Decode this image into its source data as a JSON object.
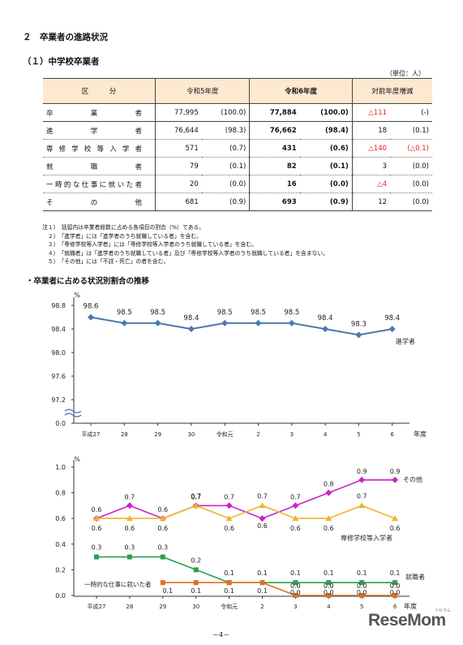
{
  "section_title": "２　卒業者の進路状況",
  "subsection_title": "（１）中学校卒業者",
  "unit_note": "（単位：人）",
  "table": {
    "headers": [
      "区　　　分",
      "令和5年度",
      "令和6年度",
      "対前年度増減"
    ],
    "rows": [
      {
        "label": "卒業者",
        "r5": "77,995",
        "r5p": "(100.0)",
        "r6": "77,884",
        "r6p": "(100.0)",
        "diff": "△111",
        "diffp": "(-)",
        "diff_red": true,
        "diffp_red": false
      },
      {
        "label": "進学者",
        "r5": "76,644",
        "r5p": "(98.3)",
        "r6": "76,662",
        "r6p": "(98.4)",
        "diff": "18",
        "diffp": "(0.1)",
        "diff_red": false,
        "diffp_red": false
      },
      {
        "label": "専修学校等入学者",
        "r5": "571",
        "r5p": "(0.7)",
        "r6": "431",
        "r6p": "(0.6)",
        "diff": "△140",
        "diffp": "(△0.1)",
        "diff_red": true,
        "diffp_red": true
      },
      {
        "label": "就職者",
        "r5": "79",
        "r5p": "(0.1)",
        "r6": "82",
        "r6p": "(0.1)",
        "diff": "3",
        "diffp": "(0.0)",
        "diff_red": false,
        "diffp_red": false
      },
      {
        "label": "一時的な仕事に就いた者",
        "r5": "20",
        "r5p": "(0.0)",
        "r6": "16",
        "r6p": "(0.0)",
        "diff": "△4",
        "diffp": "(0.0)",
        "diff_red": true,
        "diffp_red": false
      },
      {
        "label": "その他",
        "r5": "681",
        "r5p": "(0.9)",
        "r6": "693",
        "r6p": "(0.9)",
        "diff": "12",
        "diffp": "(0.0)",
        "diff_red": false,
        "diffp_red": false
      }
    ]
  },
  "notes": [
    "注１）　括弧内は卒業者総数に占める各項目の割合（%）である。",
    "　２）　「進学者」には「進学者のうち就職している者」を含む。",
    "　３）　「専修学校等入学者」には「専修学校等入学者のうち就職している者」を含む。",
    "　４）　「就職者」は「進学者のうち就職している者」及び「専修学校等入学者のうち就職している者」を含まない。",
    "　５）　「その他」には「不詳・死亡」の者を含む。"
  ],
  "chart_heading": "・卒業者に占める状況別割合の推移",
  "page_number": "－4－",
  "logo_text": "ReseMom",
  "logo_sub": "リセマム",
  "chart_data": [
    {
      "type": "line",
      "unit_label": "%",
      "x_axis_label": "年度",
      "categories": [
        "平成27",
        "28",
        "29",
        "30",
        "令和元",
        "2",
        "3",
        "4",
        "5",
        "6"
      ],
      "y_ticks": [
        "98.8",
        "98.4",
        "98.0",
        "97.6",
        "97.2",
        "0.0"
      ],
      "ylim": [
        97.2,
        98.8
      ],
      "axis_break": true,
      "grid": false,
      "series": [
        {
          "name": "進学者",
          "color": "#4a78b0",
          "marker": "diamond",
          "values": [
            98.6,
            98.5,
            98.5,
            98.4,
            98.5,
            98.5,
            98.5,
            98.4,
            98.3,
            98.4
          ]
        }
      ]
    },
    {
      "type": "line",
      "unit_label": "%",
      "x_axis_label": "年度",
      "categories": [
        "平成27",
        "28",
        "29",
        "30",
        "令和元",
        "2",
        "3",
        "4",
        "5",
        "6"
      ],
      "y_ticks": [
        "1.0",
        "0.8",
        "0.6",
        "0.4",
        "0.2",
        "0.0"
      ],
      "ylim": [
        0.0,
        1.0
      ],
      "grid": false,
      "series": [
        {
          "name": "その他",
          "color": "#cc22cc",
          "marker": "diamond",
          "values": [
            0.6,
            0.7,
            0.6,
            0.7,
            0.7,
            0.6,
            0.7,
            0.8,
            0.9,
            0.9
          ]
        },
        {
          "name": "専修学校等入学者",
          "color": "#f0b429",
          "marker": "triangle",
          "values": [
            0.6,
            0.6,
            0.6,
            0.7,
            0.6,
            0.7,
            0.6,
            0.6,
            0.7,
            0.6
          ]
        },
        {
          "name": "就職者",
          "color": "#2e9e4a",
          "marker": "square",
          "values": [
            0.3,
            0.3,
            0.3,
            0.2,
            0.1,
            0.1,
            0.1,
            0.1,
            0.1,
            0.1
          ]
        },
        {
          "name": "一時的な仕事に就いた者",
          "color": "#e07020",
          "marker": "square",
          "values": [
            null,
            null,
            0.1,
            0.1,
            0.1,
            0.1,
            0.0,
            0.0,
            0.0,
            0.0
          ]
        }
      ]
    }
  ]
}
